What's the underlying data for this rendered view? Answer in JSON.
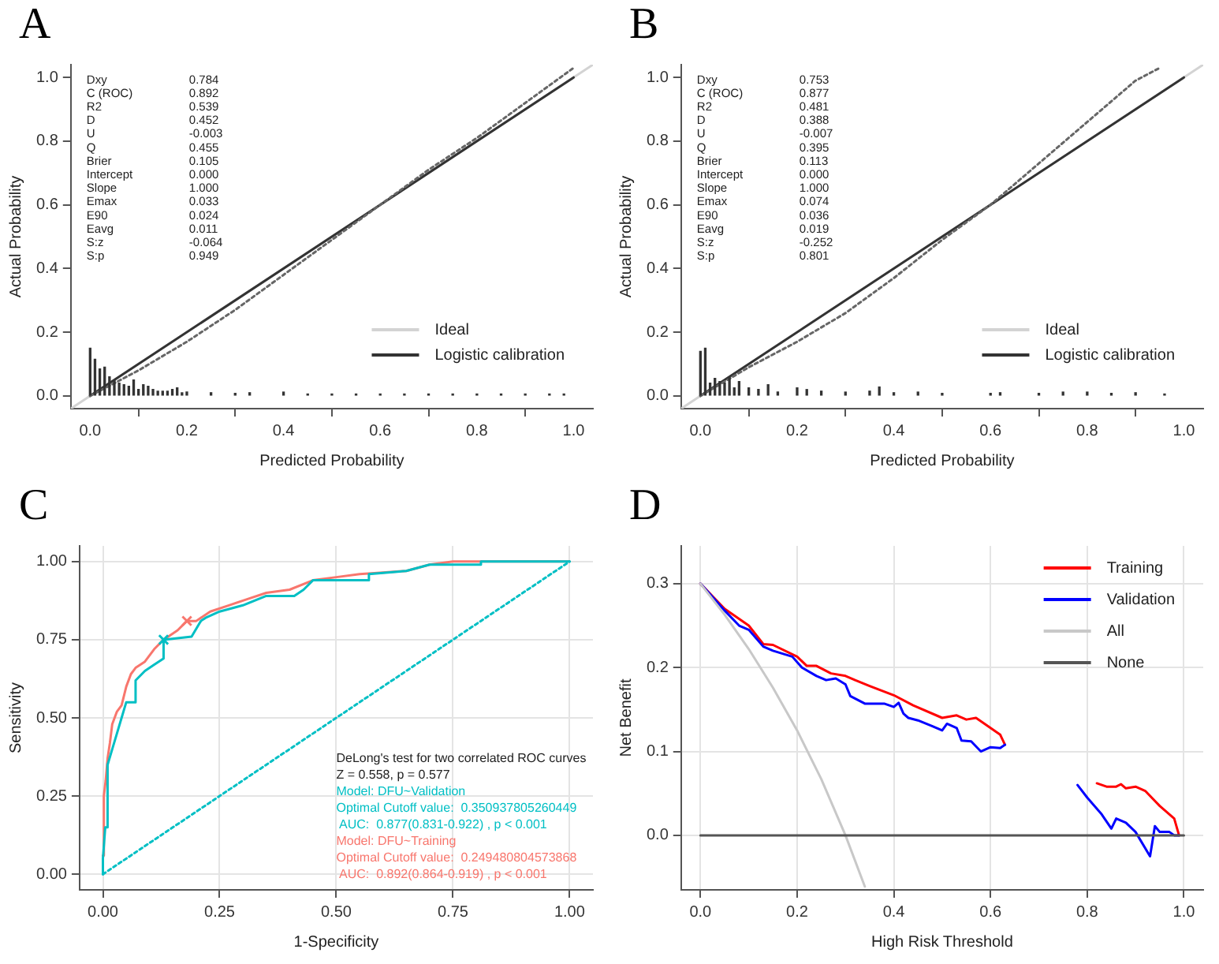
{
  "chart_data": [
    {
      "type": "line",
      "title": "A",
      "xlabel": "Predicted Probability",
      "ylabel": "Actual Probability",
      "annotations": [
        "Dxy\t0.784",
        "C (ROC)\t0.892",
        "R2\t0.539",
        "D\t0.452",
        "U\t-0.003",
        "Q\t0.455",
        "Brier\t0.105",
        "Intercept\t0.000",
        "Slope\t1.000",
        "Emax\t0.033",
        "E90\t0.024",
        "Eavg\t0.011",
        "S:z\t-0.064",
        "S:p\t0.949"
      ],
      "xlim": [
        -0.04,
        1.04
      ],
      "ylim": [
        -0.04,
        1.04
      ],
      "xticks": [
        {
          "value": 0,
          "label": "0.0"
        },
        {
          "value": 0.2,
          "label": "0.2"
        },
        {
          "value": 0.4,
          "label": "0.4"
        },
        {
          "value": 0.6,
          "label": "0.6"
        },
        {
          "value": 0.8,
          "label": "0.8"
        },
        {
          "value": 1,
          "label": "1.0"
        }
      ],
      "yticks": [
        {
          "value": 0,
          "label": "0.0"
        },
        {
          "value": 0.2,
          "label": "0.2"
        },
        {
          "value": 0.4,
          "label": "0.4"
        },
        {
          "value": 0.6,
          "label": "0.6"
        },
        {
          "value": 0.8,
          "label": "0.8"
        },
        {
          "value": 1,
          "label": "1.0"
        }
      ],
      "grid": false,
      "legend": "bottom right",
      "marker": "none",
      "series": [
        {
          "name": "Ideal",
          "color": "#d3d3d3",
          "x": [
            -0.04,
            1.04
          ],
          "values": [
            -0.04,
            1.04
          ]
        },
        {
          "name": "Logistic calibration",
          "color": "#333333",
          "x": [
            0,
            1
          ],
          "values": [
            0,
            1
          ]
        },
        {
          "color": "#666666",
          "line_style": "dotted",
          "x": [
            0,
            0.1,
            0.2,
            0.3,
            0.4,
            0.5,
            0.6,
            0.7,
            0.8,
            0.9,
            1.0
          ],
          "values": [
            0,
            0.08,
            0.17,
            0.27,
            0.38,
            0.49,
            0.6,
            0.71,
            0.81,
            0.92,
            1.03
          ]
        },
        {
          "type": "bar",
          "color": "#333333",
          "x": [
            0,
            0.01,
            0.02,
            0.03,
            0.04,
            0.05,
            0.06,
            0.07,
            0.08,
            0.09,
            0.1,
            0.11,
            0.12,
            0.13,
            0.14,
            0.15,
            0.16,
            0.17,
            0.18,
            0.19,
            0.2,
            0.25,
            0.3,
            0.33,
            0.4,
            0.45,
            0.5,
            0.55,
            0.6,
            0.65,
            0.7,
            0.75,
            0.8,
            0.85,
            0.9,
            0.95,
            0.98
          ],
          "values": [
            0.15,
            0.115,
            0.085,
            0.09,
            0.06,
            0.05,
            0.04,
            0.035,
            0.03,
            0.05,
            0.02,
            0.035,
            0.03,
            0.02,
            0.015,
            0.015,
            0.015,
            0.02,
            0.025,
            0.01,
            0.012,
            0.01,
            0.008,
            0.01,
            0.012,
            0.006,
            0.006,
            0.006,
            0.006,
            0.006,
            0.006,
            0.006,
            0.006,
            0.006,
            0.006,
            0.006,
            0.006
          ]
        }
      ]
    },
    {
      "type": "line",
      "title": "B",
      "xlabel": "Predicted Probability",
      "ylabel": "Actual Probability",
      "annotations": [
        "Dxy\t0.753",
        "C (ROC)\t0.877",
        "R2\t0.481",
        "D\t0.388",
        "U\t-0.007",
        "Q\t0.395",
        "Brier\t0.113",
        "Intercept\t0.000",
        "Slope\t1.000",
        "Emax\t0.074",
        "E90\t0.036",
        "Eavg\t0.019",
        "S:z\t-0.252",
        "S:p\t0.801"
      ],
      "xlim": [
        -0.04,
        1.04
      ],
      "ylim": [
        -0.04,
        1.04
      ],
      "xticks": [
        {
          "value": 0,
          "label": "0.0"
        },
        {
          "value": 0.2,
          "label": "0.2"
        },
        {
          "value": 0.4,
          "label": "0.4"
        },
        {
          "value": 0.6,
          "label": "0.6"
        },
        {
          "value": 0.8,
          "label": "0.8"
        },
        {
          "value": 1,
          "label": "1.0"
        }
      ],
      "yticks": [
        {
          "value": 0,
          "label": "0.0"
        },
        {
          "value": 0.2,
          "label": "0.2"
        },
        {
          "value": 0.4,
          "label": "0.4"
        },
        {
          "value": 0.6,
          "label": "0.6"
        },
        {
          "value": 0.8,
          "label": "0.8"
        },
        {
          "value": 1,
          "label": "1.0"
        }
      ],
      "grid": false,
      "legend": "bottom right",
      "marker": "none",
      "series": [
        {
          "name": "Ideal",
          "color": "#d3d3d3",
          "x": [
            -0.04,
            1.04
          ],
          "values": [
            -0.04,
            1.04
          ]
        },
        {
          "name": "Logistic calibration",
          "color": "#333333",
          "x": [
            0,
            1
          ],
          "values": [
            0,
            1
          ]
        },
        {
          "color": "#666666",
          "line_style": "dotted",
          "x": [
            0,
            0.1,
            0.2,
            0.3,
            0.4,
            0.5,
            0.6,
            0.7,
            0.8,
            0.9,
            0.95
          ],
          "values": [
            0,
            0.09,
            0.17,
            0.26,
            0.37,
            0.49,
            0.6,
            0.73,
            0.86,
            0.99,
            1.03
          ]
        },
        {
          "type": "bar",
          "color": "#333333",
          "x": [
            0,
            0.01,
            0.02,
            0.03,
            0.04,
            0.05,
            0.06,
            0.07,
            0.08,
            0.1,
            0.12,
            0.14,
            0.16,
            0.2,
            0.22,
            0.25,
            0.3,
            0.35,
            0.37,
            0.4,
            0.45,
            0.5,
            0.6,
            0.62,
            0.7,
            0.75,
            0.8,
            0.85,
            0.9,
            0.96
          ],
          "values": [
            0.14,
            0.15,
            0.04,
            0.055,
            0.045,
            0.04,
            0.06,
            0.025,
            0.045,
            0.025,
            0.02,
            0.035,
            0.012,
            0.025,
            0.02,
            0.015,
            0.012,
            0.015,
            0.028,
            0.01,
            0.012,
            0.008,
            0.008,
            0.01,
            0.008,
            0.012,
            0.012,
            0.008,
            0.01,
            0.006
          ]
        }
      ]
    },
    {
      "type": "line",
      "title": "C",
      "xlabel": "1-Specificity",
      "ylabel": "Sensitivity",
      "annotations": [
        "DeLong's test for two correlated ROC curves",
        "Z = 0.558, p = 0.577",
        "Model: DFU~Validation",
        "Optimal Cutoff value:  0.350937805260449",
        " AUC:  0.877(0.831-0.922) , p < 0.001",
        "Model: DFU~Training",
        "Optimal Cutoff value:  0.249480804573868",
        " AUC:  0.892(0.864-0.919) , p < 0.001"
      ],
      "xlim": [
        -0.05,
        1.05
      ],
      "ylim": [
        -0.05,
        1.05
      ],
      "xticks": [
        {
          "value": 0,
          "label": "0.00"
        },
        {
          "value": 0.25,
          "label": "0.25"
        },
        {
          "value": 0.5,
          "label": "0.50"
        },
        {
          "value": 0.75,
          "label": "0.75"
        },
        {
          "value": 1,
          "label": "1.00"
        }
      ],
      "yticks": [
        {
          "value": 0,
          "label": "0.00"
        },
        {
          "value": 0.25,
          "label": "0.25"
        },
        {
          "value": 0.5,
          "label": "0.50"
        },
        {
          "value": 0.75,
          "label": "0.75"
        },
        {
          "value": 1,
          "label": "1.00"
        }
      ],
      "grid": true,
      "marker": "none",
      "series": [
        {
          "color": "#f8766d",
          "x": [
            0,
            0.002,
            0.006,
            0.01,
            0.015,
            0.02,
            0.03,
            0.04,
            0.05,
            0.06,
            0.07,
            0.09,
            0.11,
            0.13,
            0.16,
            0.18,
            0.2,
            0.23,
            0.27,
            0.31,
            0.35,
            0.4,
            0.45,
            0.5,
            0.55,
            0.6,
            0.65,
            0.7,
            0.75,
            1
          ],
          "values": [
            0.06,
            0.25,
            0.3,
            0.37,
            0.42,
            0.48,
            0.52,
            0.54,
            0.6,
            0.64,
            0.66,
            0.68,
            0.72,
            0.75,
            0.78,
            0.81,
            0.81,
            0.84,
            0.86,
            0.88,
            0.9,
            0.91,
            0.94,
            0.95,
            0.96,
            0.965,
            0.97,
            0.99,
            1,
            1
          ]
        },
        {
          "color": "#00bfc4",
          "x": [
            0,
            0,
            0.005,
            0.01,
            0.01,
            0.02,
            0.03,
            0.04,
            0.05,
            0.07,
            0.07,
            0.09,
            0.11,
            0.13,
            0.13,
            0.19,
            0.21,
            0.22,
            0.25,
            0.3,
            0.35,
            0.41,
            0.43,
            0.45,
            0.57,
            0.57,
            0.65,
            0.7,
            0.81,
            0.81,
            1
          ],
          "values": [
            0,
            0.05,
            0.15,
            0.15,
            0.35,
            0.4,
            0.45,
            0.5,
            0.55,
            0.55,
            0.62,
            0.65,
            0.67,
            0.69,
            0.75,
            0.76,
            0.81,
            0.82,
            0.84,
            0.86,
            0.89,
            0.89,
            0.91,
            0.94,
            0.94,
            0.96,
            0.97,
            0.99,
            0.99,
            1,
            1
          ]
        },
        {
          "color": "#00bfc4",
          "line_style": "dotted",
          "x": [
            0,
            1
          ],
          "values": [
            0,
            1
          ]
        },
        {
          "type": "scatter",
          "marker": "cross",
          "color": "#f8766d",
          "x": [
            0.18
          ],
          "values": [
            0.81
          ]
        },
        {
          "type": "scatter",
          "marker": "cross",
          "color": "#00bfc4",
          "x": [
            0.13
          ],
          "values": [
            0.75
          ]
        }
      ]
    },
    {
      "type": "line",
      "title": "D",
      "xlabel": "High Risk Threshold",
      "ylabel": "Net Benefit",
      "xlim": [
        -0.04,
        1.04
      ],
      "ylim": [
        -0.065,
        0.345
      ],
      "xticks": [
        {
          "value": 0,
          "label": "0.0"
        },
        {
          "value": 0.2,
          "label": "0.2"
        },
        {
          "value": 0.4,
          "label": "0.4"
        },
        {
          "value": 0.6,
          "label": "0.6"
        },
        {
          "value": 0.8,
          "label": "0.8"
        },
        {
          "value": 1,
          "label": "1.0"
        }
      ],
      "yticks": [
        {
          "value": 0,
          "label": "0.0"
        },
        {
          "value": 0.1,
          "label": "0.1"
        },
        {
          "value": 0.2,
          "label": "0.2"
        },
        {
          "value": 0.3,
          "label": "0.3"
        }
      ],
      "grid": true,
      "legend": "top right",
      "marker": "none",
      "series": [
        {
          "name": "Training",
          "color": "#ff0000",
          "x": [
            0,
            0.05,
            0.1,
            0.13,
            0.15,
            0.2,
            0.22,
            0.24,
            0.27,
            0.3,
            0.32,
            0.35,
            0.4,
            0.44,
            0.5,
            0.53,
            0.55,
            0.57,
            0.6,
            0.62,
            0.63,
            0.7,
            0.82,
            0.84,
            0.86,
            0.87,
            0.88,
            0.9,
            0.92,
            0.95,
            0.98,
            0.99
          ],
          "values": [
            0.3,
            0.27,
            0.25,
            0.228,
            0.227,
            0.213,
            0.202,
            0.202,
            0.193,
            0.19,
            0.185,
            0.178,
            0.167,
            0.155,
            0.14,
            0.143,
            0.138,
            0.14,
            0.128,
            0.12,
            0.108,
            null,
            0.062,
            0.058,
            0.058,
            0.061,
            0.056,
            0.058,
            0.053,
            0.035,
            0.02,
            0
          ]
        },
        {
          "name": "Validation",
          "color": "#0000ff",
          "x": [
            0,
            0.05,
            0.08,
            0.1,
            0.13,
            0.15,
            0.19,
            0.21,
            0.24,
            0.26,
            0.28,
            0.3,
            0.31,
            0.34,
            0.38,
            0.4,
            0.41,
            0.42,
            0.43,
            0.45,
            0.48,
            0.5,
            0.51,
            0.53,
            0.54,
            0.56,
            0.58,
            0.6,
            0.62,
            0.63,
            0.7,
            0.78,
            0.8,
            0.83,
            0.85,
            0.86,
            0.88,
            0.9,
            0.93,
            0.94,
            0.95,
            0.97,
            0.98,
            0.99
          ],
          "values": [
            0.3,
            0.268,
            0.25,
            0.245,
            0.225,
            0.22,
            0.213,
            0.2,
            0.19,
            0.185,
            0.187,
            0.18,
            0.166,
            0.157,
            0.157,
            0.153,
            0.158,
            0.145,
            0.14,
            0.137,
            0.13,
            0.125,
            0.133,
            0.128,
            0.113,
            0.112,
            0.1,
            0.105,
            0.104,
            0.108,
            null,
            0.06,
            0.045,
            0.025,
            0.008,
            0.02,
            0.015,
            0.004,
            -0.025,
            0.011,
            0.004,
            0.004,
            0,
            0
          ]
        },
        {
          "name": "All",
          "color": "#c8c8c8",
          "x": [
            0,
            0.05,
            0.1,
            0.15,
            0.2,
            0.25,
            0.3,
            0.34
          ],
          "values": [
            0.3,
            0.263,
            0.222,
            0.176,
            0.125,
            0.067,
            0,
            -0.061
          ]
        },
        {
          "name": "None",
          "color": "#555555",
          "x": [
            0,
            1
          ],
          "values": [
            0,
            0
          ]
        }
      ]
    }
  ]
}
